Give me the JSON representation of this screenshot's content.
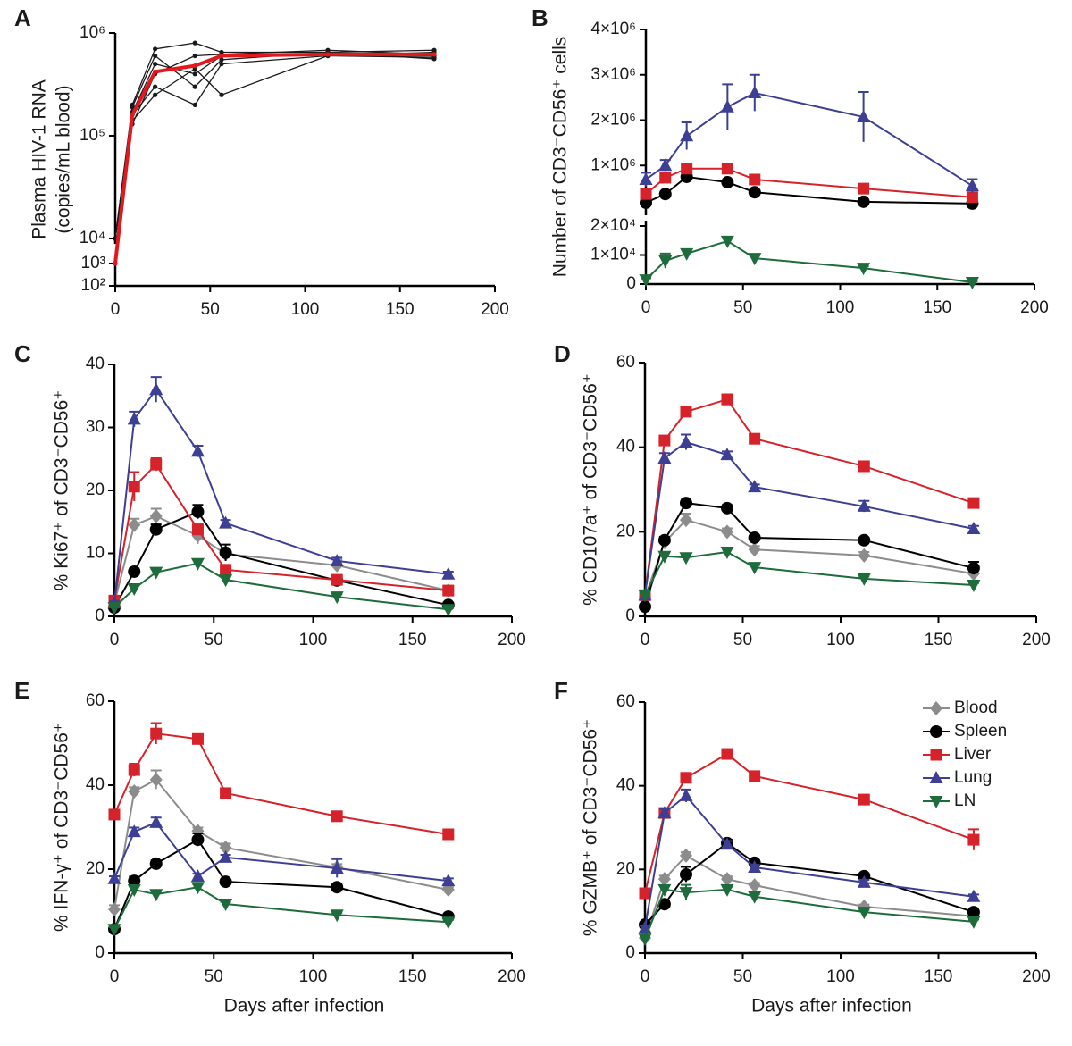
{
  "chart_data": [
    {
      "type": "line",
      "panel": "A",
      "ylabel": [
        "Plasma HIV-1 RNA",
        "(copies/mL blood)"
      ],
      "yscale": "log",
      "ybreak": [
        1000,
        10000
      ],
      "x": [
        0,
        9,
        21,
        42,
        56,
        112,
        168
      ],
      "xlim": [
        0,
        200
      ],
      "xticks": [
        0,
        50,
        100,
        150,
        200
      ],
      "ylim": [
        100,
        1000000
      ],
      "yticks": [
        {
          "value": 100,
          "label": "10²"
        },
        {
          "value": 1000,
          "label": "10³"
        },
        {
          "value": 10000,
          "label": "10⁴"
        },
        {
          "value": 100000,
          "label": "10⁵"
        },
        {
          "value": 1000000,
          "label": "10⁶"
        }
      ],
      "series": [
        {
          "color": "#1a1a1a",
          "marker": "dot",
          "line_width": 1.3,
          "values": [
            10000,
            200000,
            700000,
            800000,
            650000,
            650000,
            680000
          ]
        },
        {
          "color": "#1a1a1a",
          "marker": "dot",
          "line_width": 1.3,
          "values": [
            10000,
            170000,
            500000,
            400000,
            600000,
            620000,
            600000
          ]
        },
        {
          "color": "#1a1a1a",
          "marker": "dot",
          "line_width": 1.3,
          "values": [
            10000,
            140000,
            250000,
            450000,
            250000,
            600000,
            580000
          ]
        },
        {
          "color": "#1a1a1a",
          "marker": "dot",
          "line_width": 1.3,
          "values": [
            10000,
            190000,
            600000,
            300000,
            550000,
            650000,
            560000
          ]
        },
        {
          "color": "#1a1a1a",
          "marker": "dot",
          "line_width": 1.3,
          "values": [
            10000,
            130000,
            400000,
            600000,
            620000,
            680000,
            620000
          ]
        },
        {
          "color": "#1a1a1a",
          "marker": "dot",
          "line_width": 1.3,
          "values": [
            10000,
            160000,
            300000,
            200000,
            500000,
            600000,
            650000
          ]
        },
        {
          "color": "#e3171e",
          "marker": "dot",
          "line_width": 4,
          "values": [
            1000,
            160000,
            420000,
            480000,
            600000,
            620000,
            620000
          ]
        }
      ]
    },
    {
      "type": "line",
      "panel": "B",
      "ylabel": "Number of CD3⁻CD56⁺ cells",
      "x": [
        0,
        10,
        21,
        42,
        56,
        112,
        168
      ],
      "xlim": [
        0,
        200
      ],
      "xticks": [
        0,
        50,
        100,
        150,
        200
      ],
      "ylim": [
        0,
        4000000
      ],
      "yticks": [
        {
          "value": 1000000,
          "label": "1×10⁶"
        },
        {
          "value": 2000000,
          "label": "2×10⁶"
        },
        {
          "value": 3000000,
          "label": "3×10⁶"
        },
        {
          "value": 4000000,
          "label": "4×10⁶"
        }
      ],
      "y2lim": [
        0,
        20000
      ],
      "y2ticks": [
        0,
        {
          "value": 10000,
          "label": "1×10⁴"
        },
        {
          "value": 20000,
          "label": "2×10⁴"
        }
      ],
      "series": [
        {
          "name": "Spleen",
          "color": "#000000",
          "marker": "circle",
          "values": [
            180000,
            370000,
            750000,
            630000,
            410000,
            200000,
            160000
          ],
          "errors": [
            30000,
            40000,
            50000,
            40000,
            30000,
            20000,
            20000
          ]
        },
        {
          "name": "Liver",
          "color": "#d6222a",
          "marker": "square",
          "values": [
            370000,
            730000,
            930000,
            930000,
            690000,
            490000,
            300000
          ],
          "errors": [
            40000,
            60000,
            50000,
            50000,
            40000,
            40000,
            30000
          ]
        },
        {
          "name": "Lung",
          "color": "#3d3f95",
          "marker": "triangle-up",
          "values": [
            690000,
            1000000,
            1650000,
            2290000,
            2600000,
            2070000,
            550000
          ],
          "errors": [
            150000,
            120000,
            300000,
            500000,
            400000,
            550000,
            150000
          ]
        },
        {
          "name": "LN",
          "color": "#1e6b3c",
          "marker": "triangle-down",
          "axis": "y2",
          "values": [
            1500,
            8000,
            10500,
            14800,
            8900,
            5500,
            600
          ],
          "errors": [
            500,
            2500,
            1500,
            1000,
            800,
            600,
            300
          ]
        }
      ]
    },
    {
      "type": "line",
      "panel": "C",
      "ylabel": "% Ki67⁺ of CD3⁻CD56⁺",
      "x": [
        0,
        10,
        21,
        42,
        56,
        112,
        168
      ],
      "xlim": [
        0,
        200
      ],
      "xticks": [
        0,
        50,
        100,
        150,
        200
      ],
      "ylim": [
        0,
        40
      ],
      "yticks": [
        0,
        10,
        20,
        30,
        40
      ],
      "series": [
        {
          "name": "Blood",
          "color": "#8c8c8c",
          "marker": "diamond",
          "values": [
            2.1,
            14.5,
            15.9,
            12.8,
            9.9,
            8.1,
            4.1
          ],
          "errors": [
            0.3,
            1,
            1.2,
            1.3,
            0.8,
            0.9,
            0.4
          ]
        },
        {
          "name": "Spleen",
          "color": "#000000",
          "marker": "circle",
          "values": [
            1.4,
            7.1,
            13.8,
            16.6,
            10.1,
            5.7,
            1.8
          ],
          "errors": [
            0.2,
            0.5,
            0.8,
            1.1,
            1.3,
            0.5,
            0.3
          ]
        },
        {
          "name": "Liver",
          "color": "#d6222a",
          "marker": "square",
          "values": [
            2.5,
            20.6,
            24.1,
            13.8,
            7.4,
            5.8,
            4.1
          ],
          "errors": [
            0.3,
            2.3,
            1,
            0.8,
            0.6,
            0.5,
            0.5
          ]
        },
        {
          "name": "Lung",
          "color": "#3d3f95",
          "marker": "triangle-up",
          "values": [
            2.1,
            31.3,
            36,
            26.2,
            14.8,
            8.8,
            6.7
          ],
          "errors": [
            0.3,
            1.2,
            2,
            0.9,
            0.5,
            0.5,
            0.4
          ]
        },
        {
          "name": "LN",
          "color": "#1e6b3c",
          "marker": "triangle-down",
          "values": [
            1.4,
            4.4,
            7,
            8.4,
            5.8,
            3.1,
            1.1
          ],
          "errors": [
            0.2,
            0.5,
            0.5,
            0.6,
            0.5,
            0.4,
            0.2
          ]
        }
      ]
    },
    {
      "type": "line",
      "panel": "D",
      "ylabel": "% CD107a⁺ of CD3⁻CD56⁺",
      "x": [
        0,
        10,
        21,
        42,
        56,
        112,
        168
      ],
      "xlim": [
        0,
        200
      ],
      "xticks": [
        0,
        50,
        100,
        150,
        200
      ],
      "ylim": [
        0,
        60
      ],
      "yticks": [
        0,
        20,
        40,
        60
      ],
      "series": [
        {
          "name": "Blood",
          "color": "#8c8c8c",
          "marker": "diamond",
          "values": [
            4.5,
            17.5,
            22.8,
            20,
            15.8,
            14.4,
            10.1
          ],
          "errors": [
            0.5,
            1,
            1.5,
            0.8,
            0.8,
            0.8,
            0.8
          ]
        },
        {
          "name": "Spleen",
          "color": "#000000",
          "marker": "circle",
          "values": [
            2.3,
            18,
            26.8,
            25.6,
            18.6,
            18,
            11.4
          ],
          "errors": [
            0.4,
            0.8,
            0.8,
            0.7,
            0.6,
            0.6,
            1.5
          ]
        },
        {
          "name": "Liver",
          "color": "#d6222a",
          "marker": "square",
          "values": [
            5,
            41.6,
            48.4,
            51.3,
            42,
            35.5,
            26.8
          ],
          "errors": [
            0.5,
            1,
            1,
            1.2,
            0.8,
            0.8,
            1
          ]
        },
        {
          "name": "Lung",
          "color": "#3d3f95",
          "marker": "triangle-up",
          "values": [
            5,
            37.4,
            41.2,
            38.2,
            30.6,
            26,
            20.7
          ],
          "errors": [
            0.5,
            1.2,
            1.8,
            0.8,
            0.6,
            1.3,
            0.7
          ]
        },
        {
          "name": "LN",
          "color": "#1e6b3c",
          "marker": "triangle-down",
          "values": [
            5,
            14.2,
            13.9,
            15.2,
            11.6,
            8.9,
            7.4
          ],
          "errors": [
            0.4,
            0.8,
            0.6,
            1,
            0.5,
            0.5,
            0.5
          ]
        }
      ]
    },
    {
      "type": "line",
      "panel": "E",
      "ylabel": "% IFN-γ⁺ of CD3⁻CD56⁺",
      "xlabel": "Days after infection",
      "x": [
        0,
        10,
        21,
        42,
        56,
        112,
        168
      ],
      "xlim": [
        0,
        200
      ],
      "xticks": [
        0,
        50,
        100,
        150,
        200
      ],
      "ylim": [
        0,
        60
      ],
      "yticks": [
        0,
        20,
        40,
        60
      ],
      "series": [
        {
          "name": "Blood",
          "color": "#8c8c8c",
          "marker": "diamond",
          "values": [
            10.4,
            38.5,
            41.3,
            29.1,
            25.1,
            20.4,
            15.1
          ],
          "errors": [
            1,
            1,
            2.2,
            0.8,
            1,
            0.8,
            0.6
          ]
        },
        {
          "name": "Spleen",
          "color": "#000000",
          "marker": "circle",
          "values": [
            5.7,
            17.2,
            21.3,
            27,
            17,
            15.7,
            8.7
          ],
          "errors": [
            0.8,
            1,
            0.8,
            1.5,
            0.6,
            0.6,
            0.6
          ]
        },
        {
          "name": "Liver",
          "color": "#d6222a",
          "marker": "square",
          "values": [
            33,
            43.6,
            52.3,
            51,
            38.1,
            32.6,
            28.3
          ],
          "errors": [
            0.8,
            1.5,
            2.5,
            1,
            0.8,
            0.8,
            0.8
          ]
        },
        {
          "name": "Lung",
          "color": "#3d3f95",
          "marker": "triangle-up",
          "values": [
            17.7,
            28.9,
            31.1,
            18.3,
            22.8,
            20.2,
            17.2
          ],
          "errors": [
            0.6,
            1,
            1.2,
            0.6,
            0.6,
            2.2,
            0.6
          ]
        },
        {
          "name": "LN",
          "color": "#1e6b3c",
          "marker": "triangle-down",
          "values": [
            5.7,
            15.1,
            14,
            15.7,
            11.7,
            9.1,
            7.4
          ],
          "errors": [
            0.5,
            0.8,
            0.6,
            0.7,
            0.5,
            0.5,
            0.5
          ]
        }
      ]
    },
    {
      "type": "line",
      "panel": "F",
      "ylabel": "% GZMB⁺ of CD3⁻CD56⁺",
      "xlabel": "Days after infection",
      "legend": "upper right",
      "x": [
        0,
        10,
        21,
        42,
        56,
        112,
        168
      ],
      "xlim": [
        0,
        200
      ],
      "xticks": [
        0,
        50,
        100,
        150,
        200
      ],
      "ylim": [
        0,
        60
      ],
      "yticks": [
        0,
        20,
        40,
        60
      ],
      "series": [
        {
          "name": "Blood",
          "color": "#8c8c8c",
          "marker": "diamond",
          "values": [
            3.6,
            17.7,
            23.3,
            17.7,
            16.2,
            11.1,
            8.8
          ],
          "errors": [
            0.4,
            0.8,
            0.8,
            0.6,
            0.6,
            0.5,
            0.5
          ]
        },
        {
          "name": "Spleen",
          "color": "#000000",
          "marker": "circle",
          "values": [
            6.8,
            11.7,
            18.8,
            26.3,
            21.6,
            18.4,
            9.8
          ],
          "errors": [
            0.5,
            0.8,
            1.8,
            0.8,
            0.6,
            0.6,
            0.6
          ]
        },
        {
          "name": "Liver",
          "color": "#d6222a",
          "marker": "square",
          "values": [
            14.3,
            33.5,
            41.9,
            47.6,
            42.3,
            36.7,
            27.1
          ],
          "errors": [
            0.8,
            1,
            1,
            1,
            0.8,
            0.8,
            2.5
          ]
        },
        {
          "name": "Lung",
          "color": "#3d3f95",
          "marker": "triangle-up",
          "values": [
            6,
            33.5,
            37.6,
            26,
            20.5,
            16.9,
            13.5
          ],
          "errors": [
            0.5,
            1,
            1.5,
            0.8,
            0.6,
            0.6,
            0.5
          ]
        },
        {
          "name": "LN",
          "color": "#1e6b3c",
          "marker": "triangle-down",
          "values": [
            3.4,
            15.2,
            14.5,
            15.2,
            13.5,
            9.8,
            7.5
          ],
          "errors": [
            0.4,
            1,
            1.8,
            0.7,
            0.6,
            0.5,
            0.5
          ]
        }
      ]
    }
  ]
}
